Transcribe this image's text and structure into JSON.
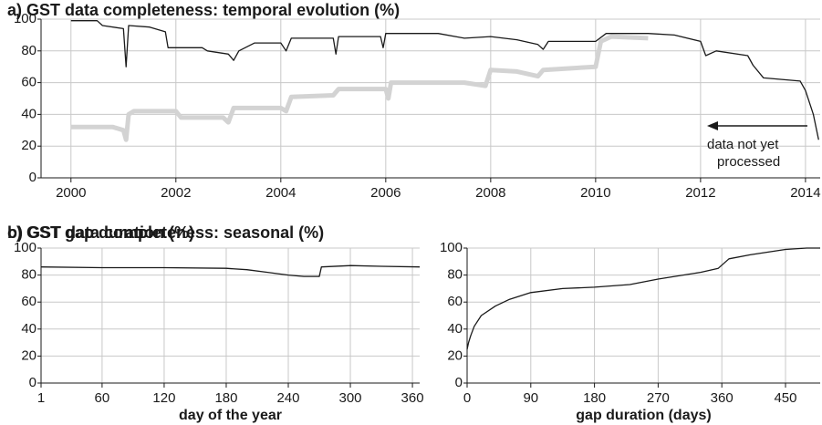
{
  "chart_data": [
    {
      "type": "line",
      "title": "a) GST data completeness: temporal evolution (%)",
      "xlim": [
        1999.43,
        2014.28
      ],
      "xticks": [
        2000,
        2002,
        2004,
        2006,
        2008,
        2010,
        2012,
        2014
      ],
      "ylim": [
        0,
        100
      ],
      "yticks": [
        0,
        20,
        40,
        60,
        80,
        100
      ],
      "grid": true,
      "annotation": [
        "data not yet",
        "processed"
      ],
      "series": [
        {
          "color": "#d3d3d3",
          "x": [
            2000.0,
            2000.8,
            2001.0,
            2001.05,
            2001.1,
            2001.2,
            2002.0,
            2002.1,
            2002.9,
            2003.0,
            2003.1,
            2004.0,
            2004.1,
            2004.2,
            2005.0,
            2005.1,
            2006.0,
            2006.05,
            2006.1,
            2007.5,
            2007.9,
            2008.0,
            2008.5,
            2008.9,
            2009.0,
            2010.0,
            2010.1,
            2010.3,
            2011.0
          ],
          "values": [
            32,
            32,
            30,
            24,
            40,
            42,
            42,
            38,
            38,
            35,
            44,
            44,
            42,
            51,
            52,
            56,
            56,
            50,
            60,
            60,
            58,
            68,
            67,
            64,
            68,
            70,
            86,
            89,
            88
          ]
        },
        {
          "color": "#1a1a1a",
          "x": [
            2000.0,
            2000.5,
            2000.6,
            2001.0,
            2001.05,
            2001.1,
            2001.5,
            2001.8,
            2001.85,
            2002.5,
            2002.6,
            2003.0,
            2003.1,
            2003.2,
            2003.5,
            2004.0,
            2004.1,
            2004.2,
            2005.0,
            2005.05,
            2005.1,
            2005.9,
            2005.95,
            2006.0,
            2007.0,
            2007.5,
            2008.0,
            2008.5,
            2008.9,
            2009.0,
            2009.1,
            2010.0,
            2010.2,
            2011.0,
            2011.5,
            2012.0,
            2012.1,
            2012.3,
            2012.9,
            2013.0,
            2013.2,
            2013.9,
            2014.0,
            2014.15,
            2014.25
          ],
          "values": [
            99,
            99,
            96,
            94,
            70,
            96,
            95,
            92,
            82,
            82,
            80,
            78,
            74,
            80,
            85,
            85,
            80,
            88,
            88,
            78,
            89,
            89,
            82,
            91,
            91,
            88,
            89,
            87,
            84,
            81,
            86,
            86,
            91,
            91,
            90,
            86,
            77,
            80,
            77,
            71,
            63,
            61,
            55,
            40,
            24
          ]
        }
      ]
    },
    {
      "type": "line",
      "title": "b) GST data completeness: seasonal (%)",
      "xlabel": "day of the year",
      "xlim": [
        1,
        367
      ],
      "xticks": [
        1,
        60,
        120,
        180,
        240,
        300,
        360
      ],
      "ylim": [
        0,
        100
      ],
      "yticks": [
        0,
        20,
        40,
        60,
        80,
        100
      ],
      "grid": true,
      "series": [
        {
          "color": "#1a1a1a",
          "x": [
            1,
            60,
            120,
            180,
            200,
            220,
            240,
            255,
            270,
            272,
            300,
            330,
            367
          ],
          "values": [
            86,
            85.5,
            85.5,
            85,
            84,
            82,
            80,
            79,
            79,
            86,
            87,
            86.5,
            86
          ]
        }
      ]
    },
    {
      "type": "line",
      "title": "c) GST gap duration (%)",
      "xlabel": "gap duration (days)",
      "xlim": [
        0,
        499
      ],
      "xticks": [
        0,
        90,
        180,
        270,
        360,
        450
      ],
      "ylim": [
        0,
        100
      ],
      "yticks": [
        0,
        20,
        40,
        60,
        80,
        100
      ],
      "grid": true,
      "series": [
        {
          "color": "#1a1a1a",
          "x": [
            0,
            2,
            5,
            10,
            20,
            40,
            60,
            90,
            135,
            180,
            230,
            270,
            330,
            355,
            370,
            400,
            450,
            480,
            499
          ],
          "values": [
            25,
            30,
            35,
            42,
            50,
            57,
            62,
            67,
            70,
            71,
            73,
            77,
            82,
            85,
            92,
            95,
            99,
            100,
            100
          ]
        }
      ]
    }
  ]
}
